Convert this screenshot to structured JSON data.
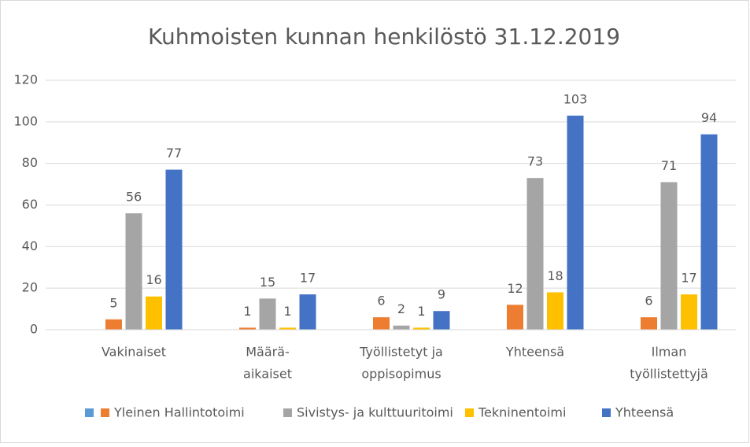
{
  "chart_data": {
    "type": "bar",
    "title": "Kuhmoisten kunnan henkilöstö 31.12.2019",
    "categories": [
      [
        "Vakinaiset"
      ],
      [
        "Määrä-",
        "aikaiset"
      ],
      [
        "Työllistetyt ja",
        "oppisopimus"
      ],
      [
        "Yhteensä"
      ],
      [
        "Ilman",
        "työllistettyjä"
      ]
    ],
    "series": [
      {
        "color": "#5b9bd5",
        "values": [
          null,
          null,
          null,
          null,
          null
        ]
      },
      {
        "name": "Yleinen Hallintotoimi",
        "color": "#ed7d31",
        "values": [
          5,
          1,
          6,
          12,
          6
        ]
      },
      {
        "name": "Sivistys- ja kulttuuritoimi",
        "color": "#a5a5a5",
        "values": [
          56,
          15,
          2,
          73,
          71
        ]
      },
      {
        "name": "Tekninentoimi",
        "color": "#ffc000",
        "values": [
          16,
          1,
          1,
          18,
          17
        ]
      },
      {
        "name": "Yhteensä",
        "color": "#4472c4",
        "values": [
          77,
          17,
          9,
          103,
          94
        ]
      }
    ],
    "ylim": [
      0,
      120
    ],
    "yticks": [
      0,
      20,
      40,
      60,
      80,
      100,
      120
    ],
    "grid": true,
    "legend": "bottom"
  }
}
